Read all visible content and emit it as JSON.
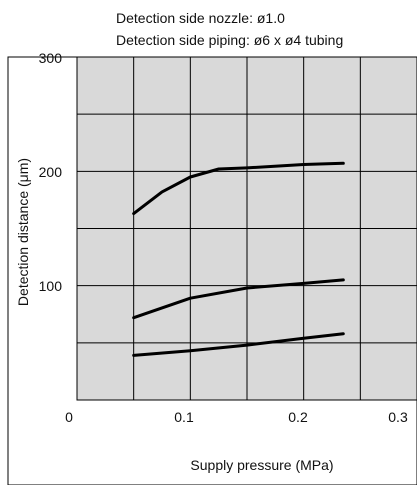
{
  "chart_data": {
    "type": "line",
    "title": "",
    "annotations": [
      "Detection side nozzle: ø1.0",
      "Detection side piping: ø6 x ø4 tubing"
    ],
    "xlabel": "Supply pressure (MPa)",
    "ylabel": "Detection distance (μm)",
    "xlim": [
      0,
      0.3
    ],
    "ylim": [
      0,
      300
    ],
    "x_ticks": [
      "0",
      "0.1",
      "0.2",
      "0.3"
    ],
    "y_ticks": [
      "100",
      "200",
      "300"
    ],
    "grid": true,
    "legend": "none",
    "series": [
      {
        "x": [
          0.05,
          0.075,
          0.1,
          0.125,
          0.15,
          0.2,
          0.235
        ],
        "y": [
          163,
          182,
          195,
          202,
          203,
          206,
          207
        ]
      },
      {
        "x": [
          0.05,
          0.1,
          0.15,
          0.2,
          0.235
        ],
        "y": [
          72,
          89,
          98,
          102,
          105
        ]
      },
      {
        "x": [
          0.05,
          0.1,
          0.15,
          0.2,
          0.235
        ],
        "y": [
          39,
          43,
          48,
          54,
          58
        ]
      }
    ]
  },
  "colors": {
    "plot_background": "#d9d9d9",
    "line": "#000000",
    "grid": "#000000"
  }
}
